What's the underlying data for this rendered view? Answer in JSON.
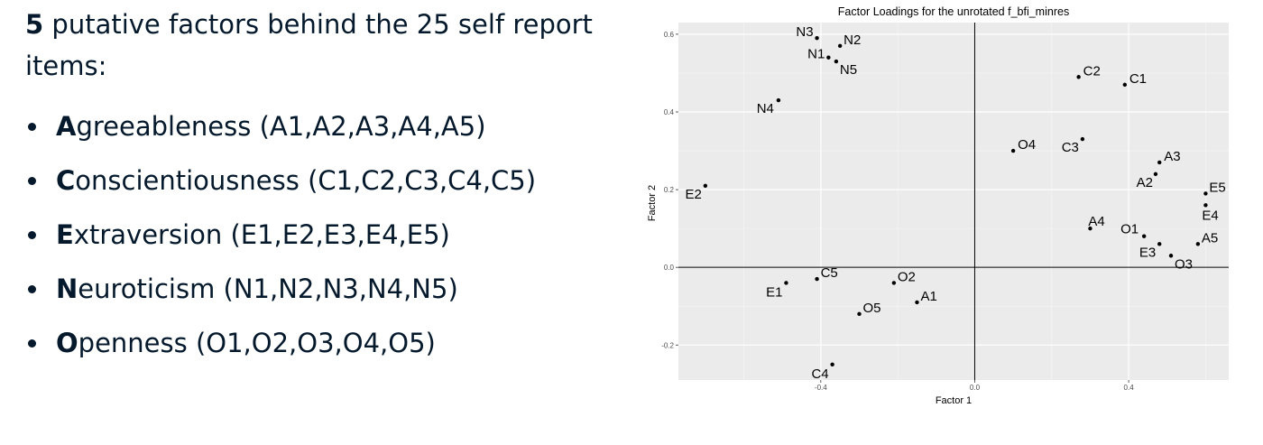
{
  "intro": {
    "count": "5",
    "text": " putative factors behind the 25 self report items:"
  },
  "factors": [
    {
      "initial": "A",
      "rest": "greeableness (A1,A2,A3,A4,A5)"
    },
    {
      "initial": "C",
      "rest": "onscientiousness (C1,C2,C3,C4,C5)"
    },
    {
      "initial": "E",
      "rest": "xtraversion (E1,E2,E3,E4,E5)"
    },
    {
      "initial": "N",
      "rest": "euroticism (N1,N2,N3,N4,N5)"
    },
    {
      "initial": "O",
      "rest": "penness (O1,O2,O3,O4,O5)"
    }
  ],
  "chart_data": {
    "type": "scatter",
    "title": "Factor Loadings for the unrotated f_bfi_minres",
    "xlabel": "Factor 1",
    "ylabel": "Factor 2",
    "xlim": [
      -0.77,
      0.66
    ],
    "ylim": [
      -0.29,
      0.63
    ],
    "xticks": [
      -0.4,
      0.0,
      0.4
    ],
    "yticks": [
      -0.2,
      0.0,
      0.2,
      0.4,
      0.6
    ],
    "xtick_labels": [
      "-0.4",
      "0.0",
      "0.4"
    ],
    "ytick_labels": [
      "-0.2",
      "0.0",
      "0.2",
      "0.4",
      "0.6"
    ],
    "grid": true,
    "background": "#ebebeb",
    "point_color": "#000000",
    "points": [
      {
        "label": "N3",
        "x": -0.41,
        "y": 0.59
      },
      {
        "label": "N2",
        "x": -0.35,
        "y": 0.57
      },
      {
        "label": "N1",
        "x": -0.38,
        "y": 0.54
      },
      {
        "label": "N5",
        "x": -0.36,
        "y": 0.53
      },
      {
        "label": "N4",
        "x": -0.51,
        "y": 0.43
      },
      {
        "label": "E2",
        "x": -0.7,
        "y": 0.21
      },
      {
        "label": "C2",
        "x": 0.27,
        "y": 0.49
      },
      {
        "label": "C1",
        "x": 0.39,
        "y": 0.47
      },
      {
        "label": "O4",
        "x": 0.1,
        "y": 0.3
      },
      {
        "label": "C3",
        "x": 0.28,
        "y": 0.33
      },
      {
        "label": "A3",
        "x": 0.48,
        "y": 0.27
      },
      {
        "label": "A2",
        "x": 0.47,
        "y": 0.24
      },
      {
        "label": "E5",
        "x": 0.6,
        "y": 0.19
      },
      {
        "label": "E4",
        "x": 0.6,
        "y": 0.16
      },
      {
        "label": "A4",
        "x": 0.3,
        "y": 0.1
      },
      {
        "label": "O1",
        "x": 0.44,
        "y": 0.08
      },
      {
        "label": "A5",
        "x": 0.58,
        "y": 0.06
      },
      {
        "label": "E3",
        "x": 0.48,
        "y": 0.06
      },
      {
        "label": "O3",
        "x": 0.51,
        "y": 0.03
      },
      {
        "label": "C5",
        "x": -0.41,
        "y": -0.03
      },
      {
        "label": "O2",
        "x": -0.21,
        "y": -0.04
      },
      {
        "label": "E1",
        "x": -0.49,
        "y": -0.04
      },
      {
        "label": "A1",
        "x": -0.15,
        "y": -0.09
      },
      {
        "label": "O5",
        "x": -0.3,
        "y": -0.12
      },
      {
        "label": "C4",
        "x": -0.37,
        "y": -0.25
      }
    ]
  }
}
